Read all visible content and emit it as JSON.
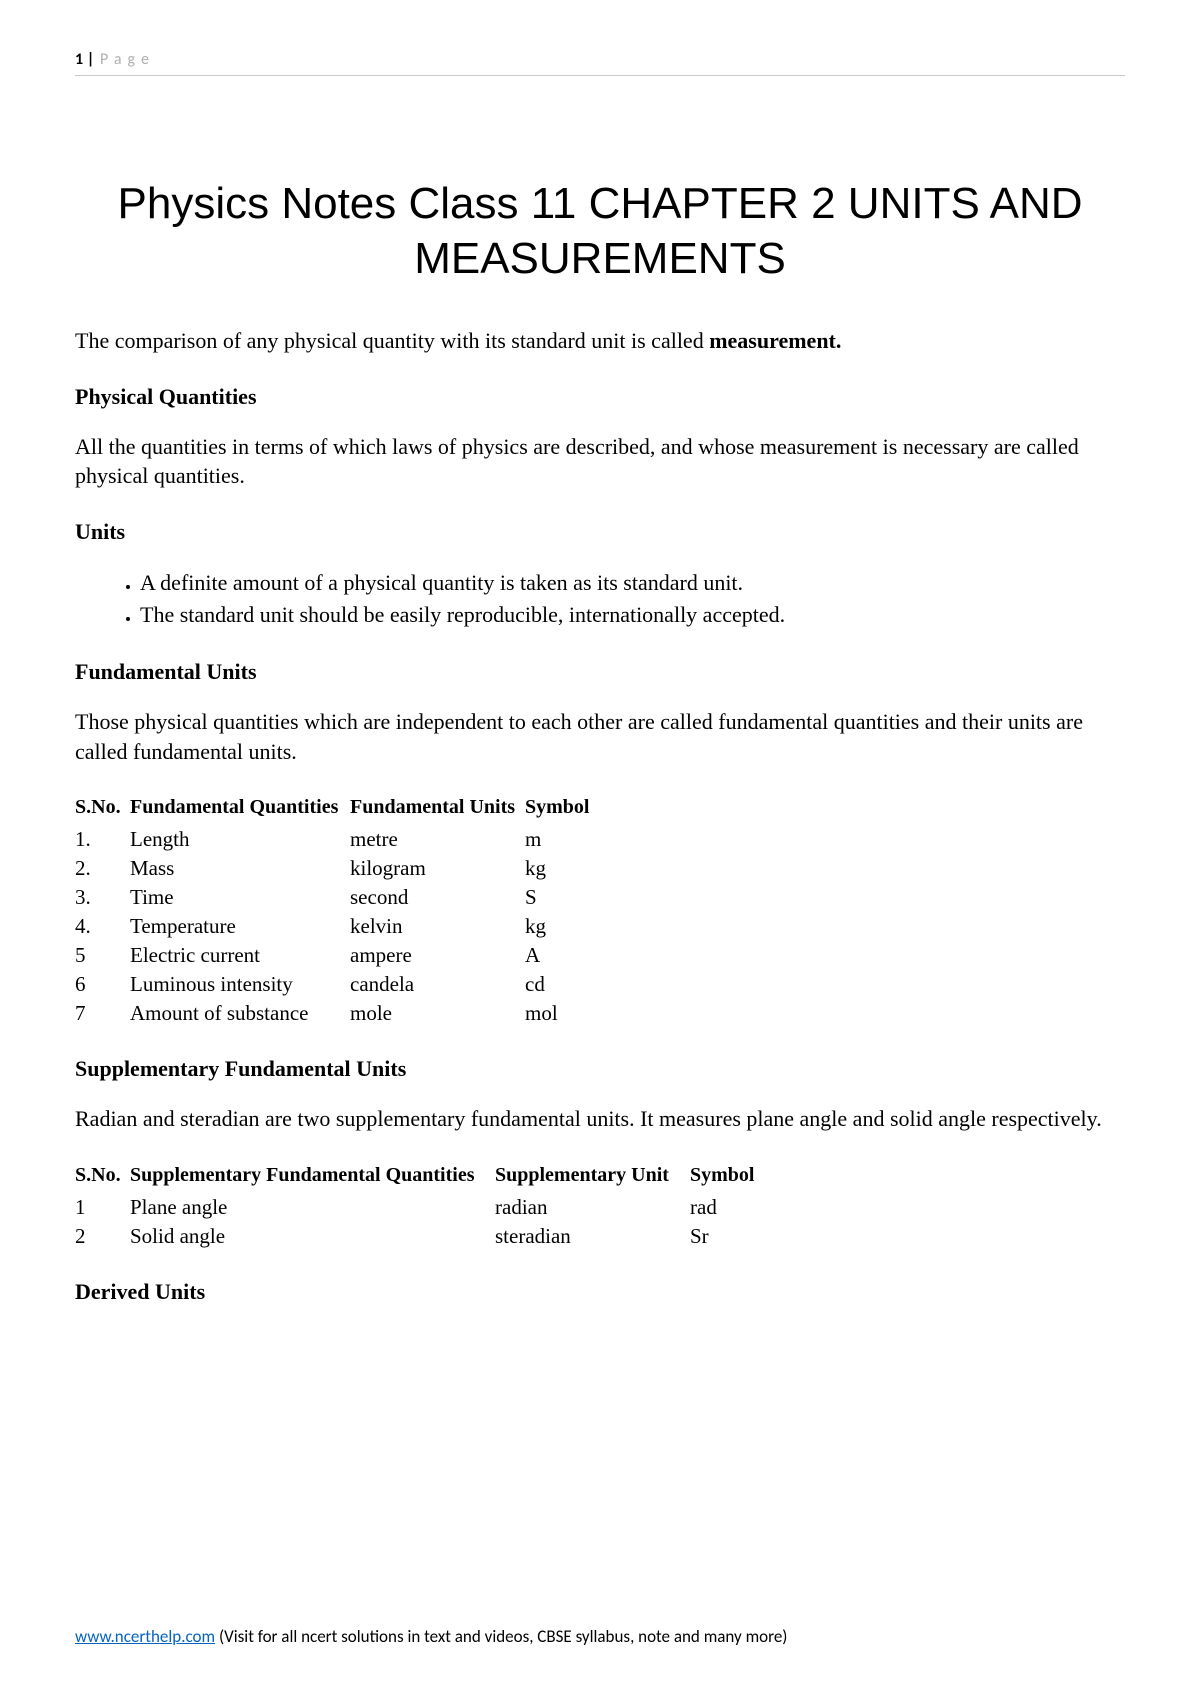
{
  "header": {
    "page_number": "1",
    "separator": " | ",
    "label": "Page"
  },
  "title": "Physics Notes Class 11 CHAPTER 2 UNITS AND MEASUREMENTS",
  "intro": {
    "text_part1": "The comparison of any physical quantity with its standard unit is called ",
    "bold_word": "measurement."
  },
  "physical_quantities": {
    "heading": "Physical Quantities",
    "text": "All the quantities in terms of which laws of physics are described, and whose measurement is necessary are called physical quantities."
  },
  "units": {
    "heading": "Units",
    "bullets": [
      "A definite amount of a physical quantity is taken as its standard unit.",
      "The standard unit should be easily reproducible, internationally accepted."
    ]
  },
  "fundamental_units": {
    "heading": "Fundamental Units",
    "text": "Those physical quantities which are independent to each other are called fundamental quantities and their units are called fundamental units.",
    "table": {
      "columns": [
        "S.No.",
        "Fundamental Quantities",
        "Fundamental Units",
        "Symbol"
      ],
      "col_widths": [
        "55px",
        "220px",
        "175px",
        "90px"
      ],
      "rows": [
        [
          "1.",
          "Length",
          "metre",
          "m"
        ],
        [
          "2.",
          "Mass",
          "kilogram",
          "kg"
        ],
        [
          "3.",
          "Time",
          "second",
          "S"
        ],
        [
          "4.",
          "Temperature",
          "kelvin",
          "kg"
        ],
        [
          "5",
          "Electric current",
          "ampere",
          "A"
        ],
        [
          "6",
          "Luminous intensity",
          "candela",
          "cd"
        ],
        [
          "7",
          "Amount of substance",
          "mole",
          "mol"
        ]
      ]
    }
  },
  "supplementary": {
    "heading": "Supplementary Fundamental Units",
    "text": "Radian and steradian are two supplementary fundamental units. It measures plane angle and solid angle respectively.",
    "table": {
      "columns": [
        "S.No.",
        "Supplementary Fundamental Quantities",
        "Supplementary Unit",
        "Symbol"
      ],
      "col_widths": [
        "55px",
        "365px",
        "195px",
        "90px"
      ],
      "rows": [
        [
          "1",
          "Plane angle",
          "radian",
          "rad"
        ],
        [
          "2",
          "Solid angle",
          "steradian",
          "Sr"
        ]
      ]
    }
  },
  "derived": {
    "heading": "Derived Units"
  },
  "footer": {
    "link_text": "www.ncerthelp.com",
    "rest": "  (Visit for all ncert solutions in text and videos, CBSE syllabus, note and many more)"
  }
}
